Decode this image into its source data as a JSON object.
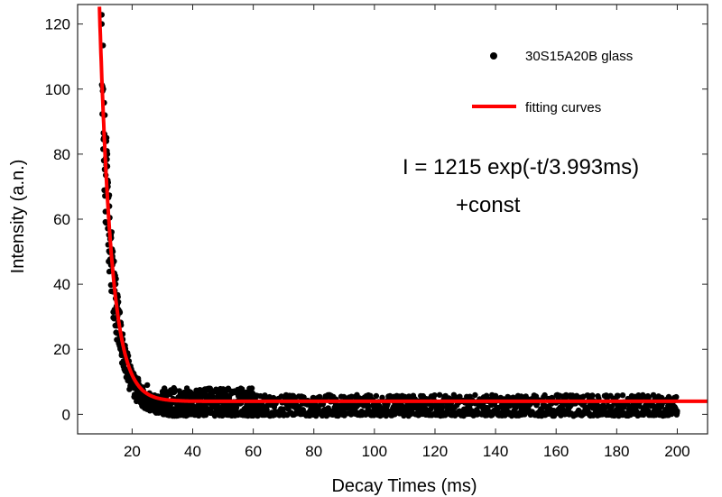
{
  "chart_data": {
    "type": "scatter",
    "xlabel": "Decay Times (ms)",
    "ylabel": "Intensity (a.n.)",
    "xlim": [
      2,
      210
    ],
    "ylim": [
      -6,
      126
    ],
    "x_ticks": [
      20,
      40,
      60,
      80,
      100,
      120,
      140,
      160,
      180,
      200
    ],
    "y_ticks": [
      0,
      20,
      40,
      60,
      80,
      100,
      120
    ],
    "grid": false,
    "legend_position": "top-right",
    "series": [
      {
        "name": "30S15A20B glass",
        "kind": "points",
        "color": "#000000",
        "x_range": [
          10,
          200
        ],
        "sample_points": [
          [
            10,
            120
          ],
          [
            10.5,
            100
          ],
          [
            11,
            92
          ],
          [
            11.5,
            84
          ],
          [
            12,
            70
          ],
          [
            12.5,
            64
          ],
          [
            13,
            55
          ],
          [
            13.5,
            48
          ],
          [
            14,
            40
          ],
          [
            15,
            33
          ],
          [
            16,
            24
          ],
          [
            17,
            20
          ],
          [
            18,
            16
          ],
          [
            20,
            13
          ],
          [
            22,
            11
          ],
          [
            25,
            9
          ],
          [
            30,
            7
          ],
          [
            40,
            5
          ],
          [
            60,
            4
          ],
          [
            100,
            3
          ],
          [
            150,
            2
          ],
          [
            200,
            1
          ]
        ]
      },
      {
        "name": "fitting curves",
        "kind": "line",
        "color": "#ff0000",
        "amplitude": 1215,
        "tau_ms": 3.993,
        "const": 4
      }
    ],
    "annotation": {
      "line1": "I = 1215 exp(-t/3.993ms)",
      "line2": "+const"
    }
  }
}
